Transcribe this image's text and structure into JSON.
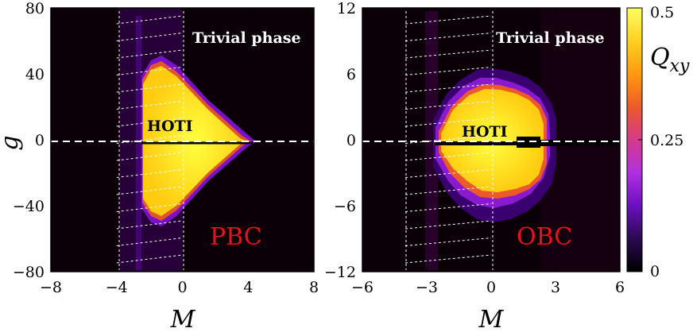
{
  "chart_data": [
    {
      "type": "heatmap",
      "annotation_phase": "Trivial phase",
      "annotation_region": "HOTI",
      "annotation_bc": "PBC",
      "xlabel": "M",
      "ylabel": "g",
      "xlim": [
        -8,
        8
      ],
      "ylim": [
        -80,
        80
      ],
      "xticks": [
        -8,
        -4,
        0,
        4,
        8
      ],
      "yticks": [
        80,
        40,
        0,
        -40,
        -80
      ],
      "xtick_labels": [
        "−8",
        "−4",
        "0",
        "4",
        "8"
      ],
      "ytick_labels": [
        "80",
        "40",
        "0",
        "−40",
        "−80"
      ],
      "hoti_region": {
        "left_edge_M": -3.0,
        "peak_M": -2.1,
        "tip_M": 4.2,
        "max_g": 44
      },
      "guide_box_M": [
        -4,
        0
      ],
      "dashed_line_g": 0
    },
    {
      "type": "heatmap",
      "annotation_phase": "Trivial phase",
      "annotation_region": "HOTI",
      "annotation_bc": "OBC",
      "xlabel": "M",
      "ylabel": "",
      "xlim": [
        -6,
        6
      ],
      "ylim": [
        -12,
        12
      ],
      "xticks": [
        -6,
        -3,
        0,
        3,
        6
      ],
      "yticks": [
        12,
        6,
        0,
        -6,
        -12
      ],
      "xtick_labels": [
        "−6",
        "−3",
        "0",
        "3",
        "6"
      ],
      "ytick_labels": [
        "12",
        "6",
        "0",
        "−6",
        "−12"
      ],
      "hoti_region": {
        "left_edge_M": -2.9,
        "right_edge_M": 2.2,
        "max_g": 5.2
      },
      "guide_box_M": [
        -4,
        0
      ],
      "dashed_line_g": 0
    }
  ],
  "colorbar": {
    "label": "Q",
    "label_sub": "xy",
    "ticks": [
      0.5,
      0.25,
      0
    ],
    "tick_labels": [
      "0.5",
      "0.25",
      "0"
    ],
    "colors": [
      "#000000",
      "#2a0a50",
      "#6a10c0",
      "#b030e0",
      "#d43a8a",
      "#ec5a2a",
      "#ff9a10",
      "#ffd020",
      "#ffff60"
    ]
  }
}
